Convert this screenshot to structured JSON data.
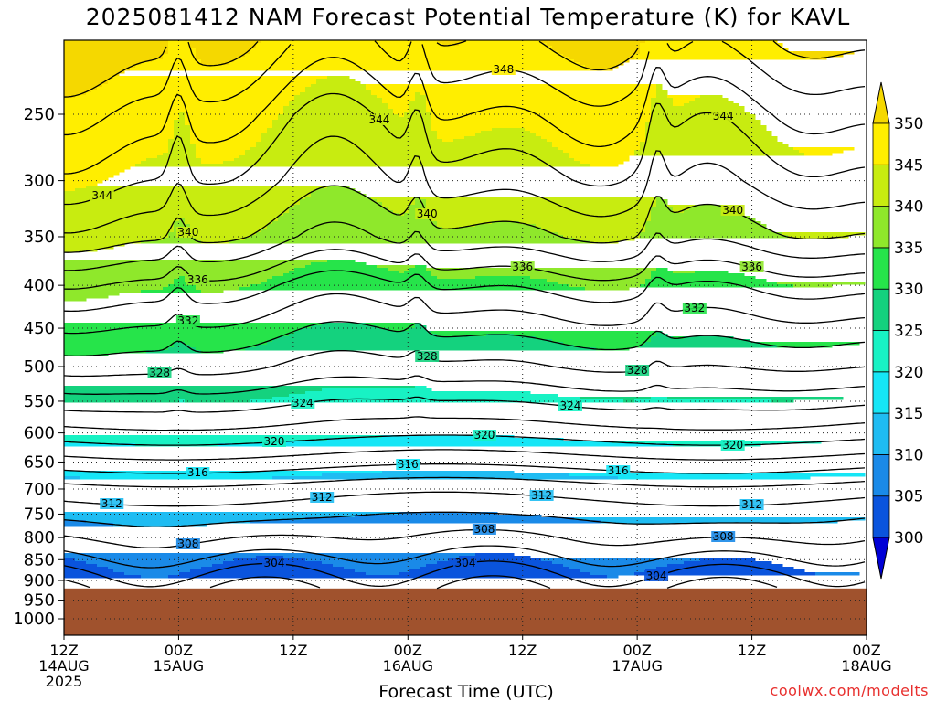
{
  "title": "2025081412 NAM Forecast Potential Temperature (K) for KAVL",
  "watermark": "coolwx.com/modelts",
  "chart_data": {
    "type": "heatmap",
    "title": "2025081412 NAM Forecast Potential Temperature (K) for KAVL",
    "xlabel": "Forecast Time (UTC)",
    "ylabel": "",
    "x_range_hours": [
      0,
      84
    ],
    "x_ticks": [
      {
        "hour": 0,
        "lines": [
          "12Z",
          "14AUG",
          "2025"
        ]
      },
      {
        "hour": 12,
        "lines": [
          "00Z",
          "15AUG"
        ]
      },
      {
        "hour": 24,
        "lines": [
          "12Z"
        ]
      },
      {
        "hour": 36,
        "lines": [
          "00Z",
          "16AUG"
        ]
      },
      {
        "hour": 48,
        "lines": [
          "12Z"
        ]
      },
      {
        "hour": 60,
        "lines": [
          "00Z",
          "17AUG"
        ]
      },
      {
        "hour": 72,
        "lines": [
          "12Z"
        ]
      },
      {
        "hour": 84,
        "lines": [
          "00Z",
          "18AUG"
        ]
      }
    ],
    "y_ticks": [
      250,
      300,
      350,
      400,
      450,
      500,
      550,
      600,
      650,
      700,
      750,
      800,
      850,
      900,
      950,
      1000
    ],
    "y_range_hpa": [
      200,
      1050
    ],
    "y_scale": "log-pressure",
    "ground_pressure_hpa": 920,
    "colorbar": {
      "levels": [
        300,
        305,
        310,
        315,
        320,
        325,
        330,
        335,
        340,
        345,
        350
      ],
      "labels": [
        "300",
        "305",
        "310",
        "315",
        "320",
        "325",
        "330",
        "335",
        "340",
        "345",
        "350"
      ],
      "colors": [
        "#0000d6",
        "#0a54dd",
        "#1a8ae8",
        "#1fbcf2",
        "#16e6f6",
        "#18f2c4",
        "#14d27e",
        "#26e44a",
        "#8fe82b",
        "#c8ec10",
        "#ffee00",
        "#f5d800"
      ]
    },
    "contour_interval_K": 2,
    "contour_labels": [
      {
        "value": 348,
        "hour": 46
      },
      {
        "value": 344,
        "hour": 4
      },
      {
        "value": 344,
        "hour": 33
      },
      {
        "value": 344,
        "hour": 69
      },
      {
        "value": 340,
        "hour": 13
      },
      {
        "value": 340,
        "hour": 38
      },
      {
        "value": 340,
        "hour": 70
      },
      {
        "value": 336,
        "hour": 14
      },
      {
        "value": 336,
        "hour": 48
      },
      {
        "value": 336,
        "hour": 72
      },
      {
        "value": 332,
        "hour": 13
      },
      {
        "value": 332,
        "hour": 66
      },
      {
        "value": 328,
        "hour": 10
      },
      {
        "value": 328,
        "hour": 38
      },
      {
        "value": 328,
        "hour": 60
      },
      {
        "value": 324,
        "hour": 25
      },
      {
        "value": 324,
        "hour": 53
      },
      {
        "value": 320,
        "hour": 22
      },
      {
        "value": 320,
        "hour": 44
      },
      {
        "value": 320,
        "hour": 70
      },
      {
        "value": 316,
        "hour": 14
      },
      {
        "value": 316,
        "hour": 36
      },
      {
        "value": 316,
        "hour": 58
      },
      {
        "value": 312,
        "hour": 5
      },
      {
        "value": 312,
        "hour": 27
      },
      {
        "value": 312,
        "hour": 50
      },
      {
        "value": 312,
        "hour": 72
      },
      {
        "value": 308,
        "hour": 13
      },
      {
        "value": 308,
        "hour": 44
      },
      {
        "value": 308,
        "hour": 69
      },
      {
        "value": 304,
        "hour": 22
      },
      {
        "value": 304,
        "hour": 42
      },
      {
        "value": 304,
        "hour": 62
      }
    ],
    "profile_pressure_hpa": [
      210,
      250,
      300,
      350,
      400,
      450,
      500,
      550,
      600,
      650,
      700,
      750,
      800,
      850,
      900,
      920
    ],
    "profile_theta_K": [
      349.5,
      346,
      343,
      339.5,
      334.5,
      331,
      328,
      324.5,
      321,
      317,
      313,
      310.5,
      308,
      305.5,
      303,
      302
    ]
  }
}
